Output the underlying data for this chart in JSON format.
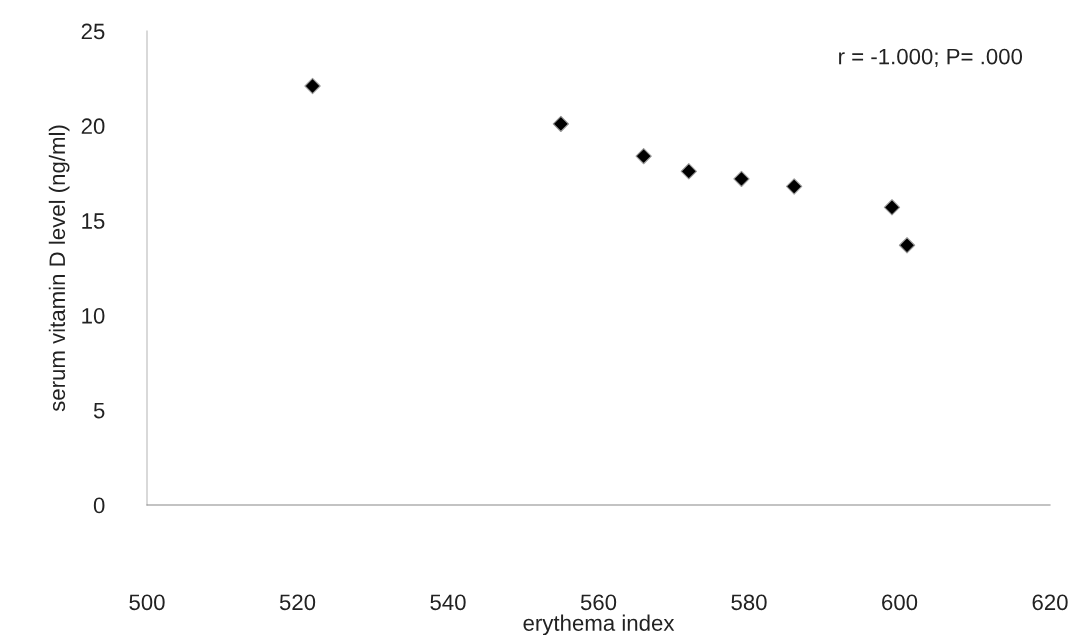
{
  "chart_data": {
    "type": "scatter",
    "xlabel": "erythema index",
    "ylabel": "serum vitamin D level (ng/ml)",
    "x": [
      522,
      555,
      566,
      572,
      579,
      586,
      599,
      601
    ],
    "values": [
      22.1,
      20.1,
      18.4,
      17.6,
      17.2,
      16.8,
      15.7,
      13.7
    ],
    "color": "#000000",
    "marker": "diamond",
    "xlim": [
      500,
      620
    ],
    "xticks": [
      500,
      520,
      540,
      560,
      580,
      600,
      620
    ],
    "ylim": [
      0,
      25
    ],
    "yticks": [
      0,
      5,
      10,
      15,
      20,
      25
    ],
    "grid": false,
    "legend": false,
    "annotations": [
      "r = -1.000; P= .000"
    ]
  }
}
